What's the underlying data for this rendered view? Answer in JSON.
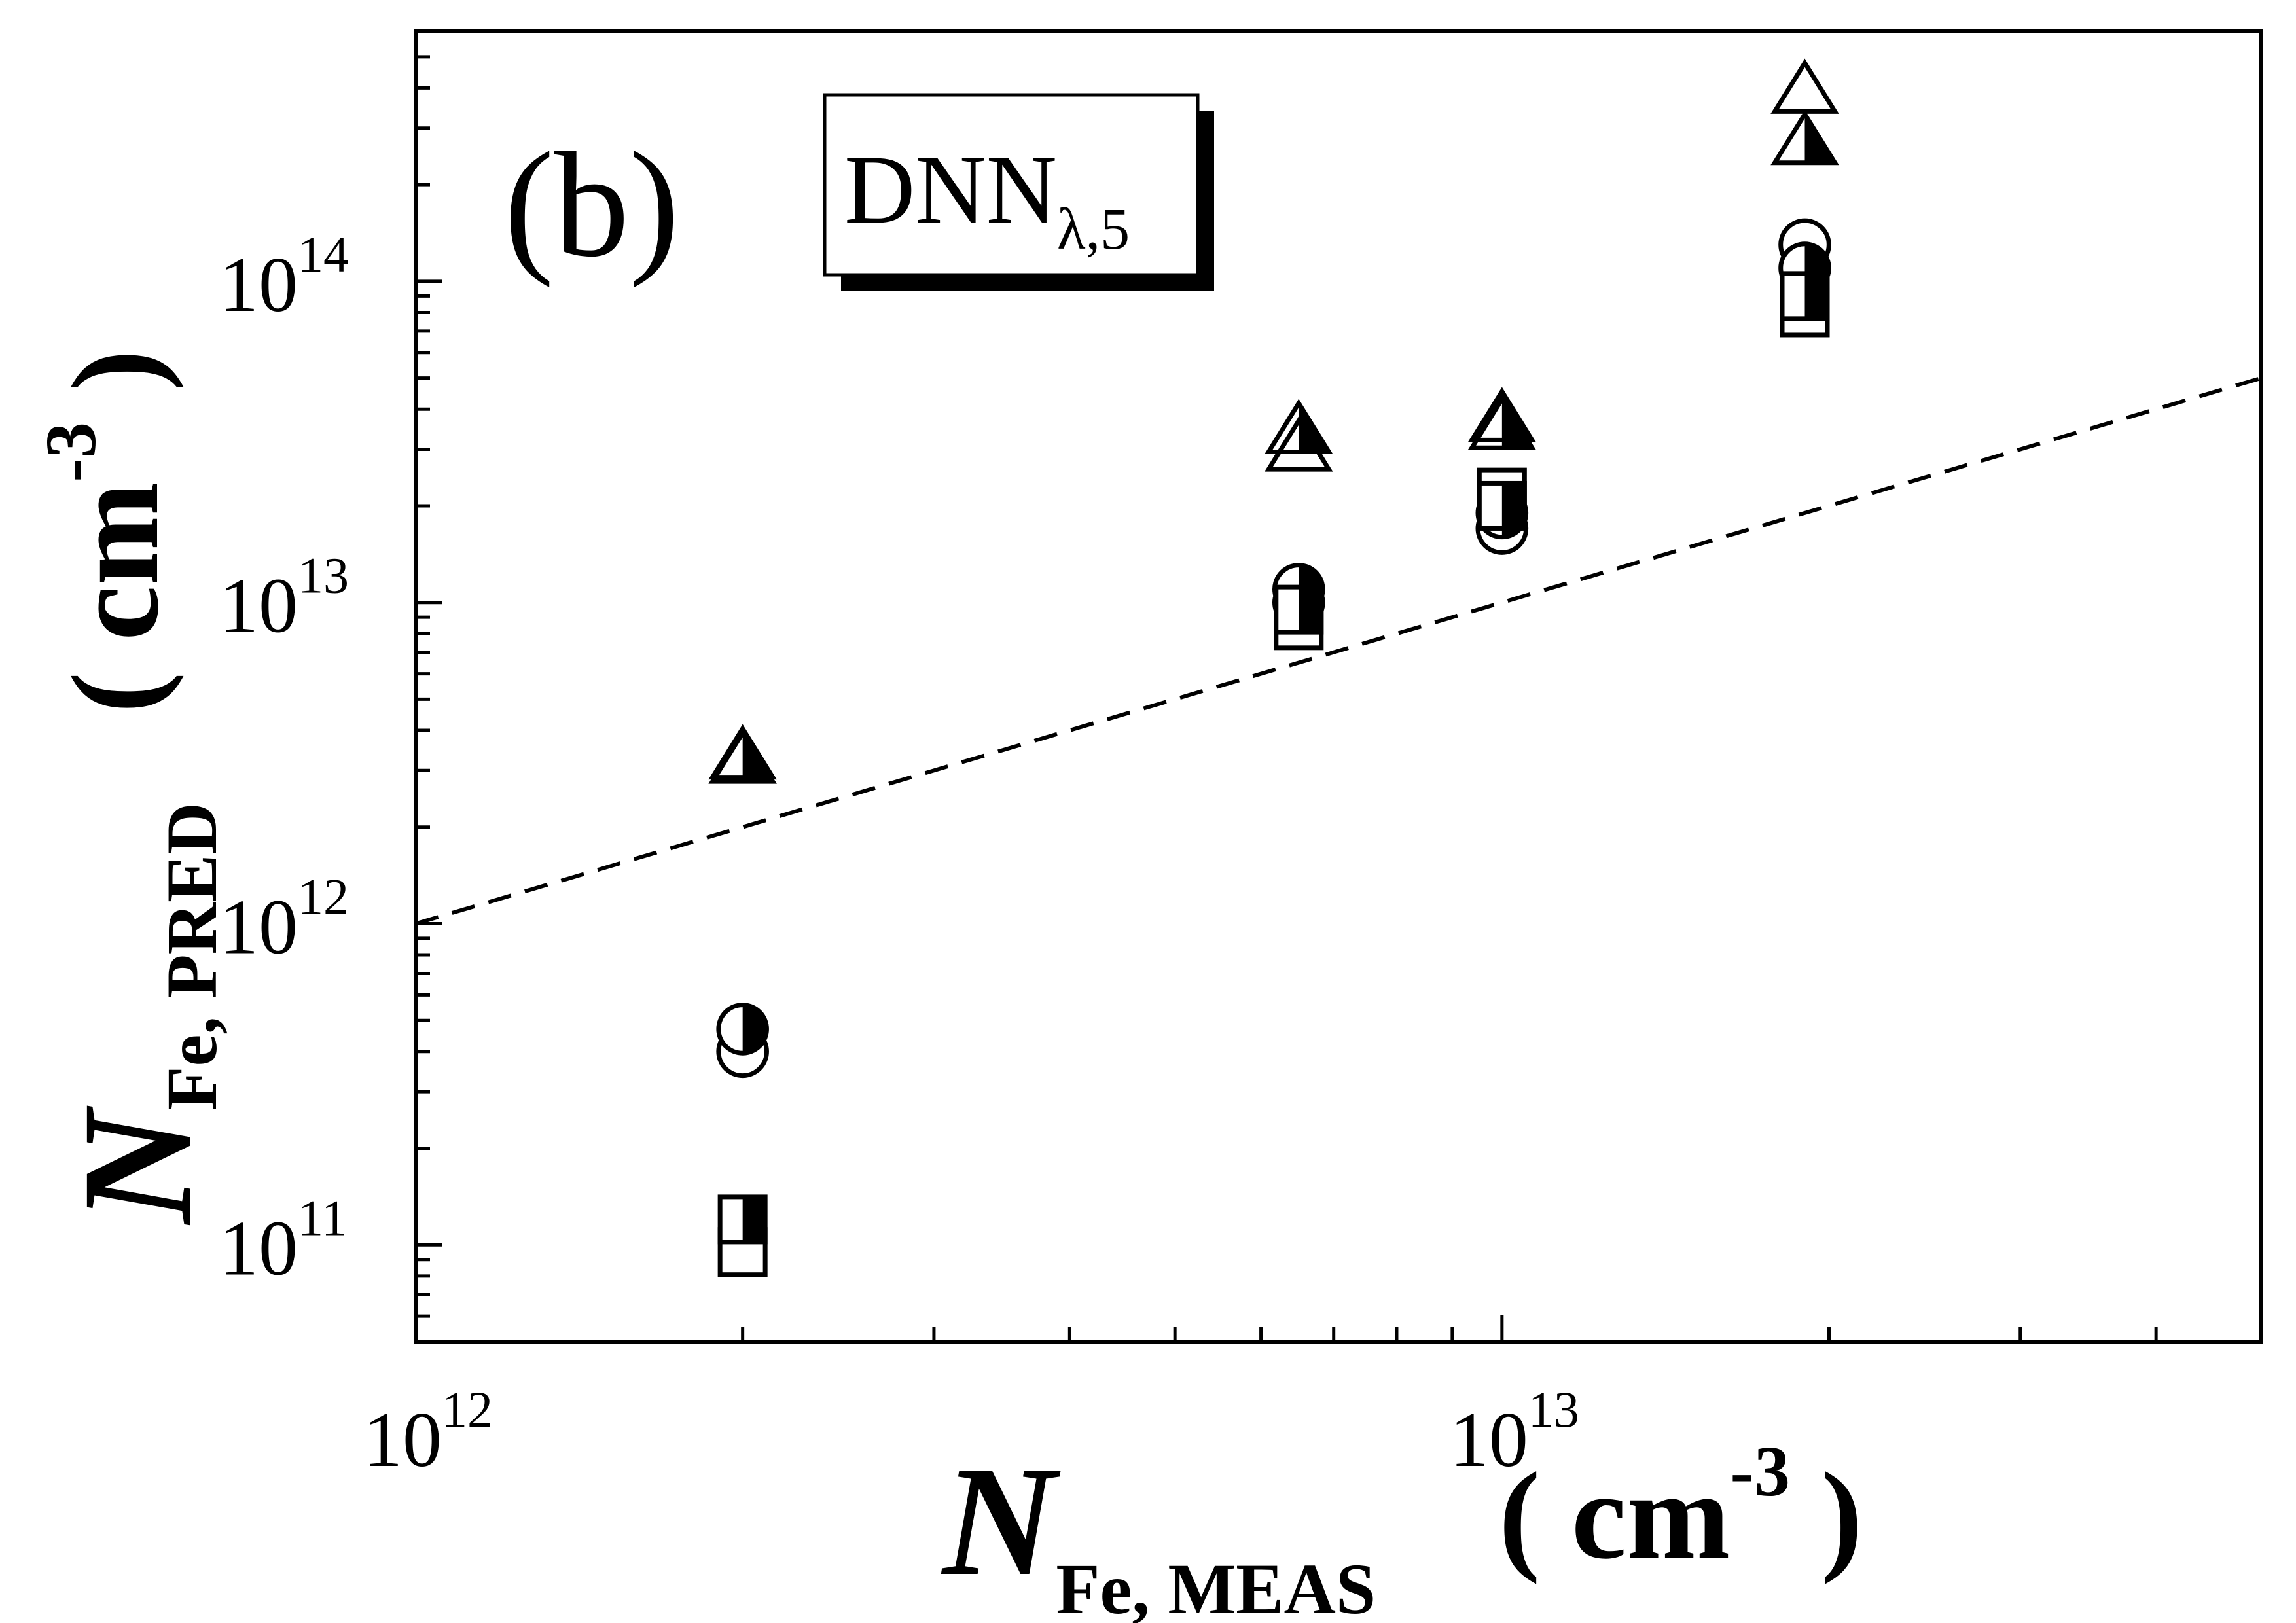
{
  "chart_data": {
    "type": "scatter",
    "panel_label": "(b)",
    "legend_box": {
      "main": "DNN",
      "subscript": "λ,5"
    },
    "x_axis": {
      "scale": "log",
      "range": [
        1000000000000.0,
        50000000000000.0
      ],
      "label_main": "N",
      "label_sub": "Fe, MEAS",
      "label_unit_open": "( cm",
      "label_unit_exp": "-3",
      "label_unit_close": " )",
      "ticks": [
        {
          "value": 1000000000000.0,
          "base": "10",
          "exp": "12"
        },
        {
          "value": 10000000000000.0,
          "base": "10",
          "exp": "13"
        }
      ]
    },
    "y_axis": {
      "scale": "log",
      "range": [
        50000000000.0,
        600000000000000.0
      ],
      "label_main": "N",
      "label_sub": "Fe, PRED",
      "label_unit_open": "( cm",
      "label_unit_exp": "-3",
      "label_unit_close": " )",
      "ticks": [
        {
          "value": 100000000000.0,
          "base": "10",
          "exp": "11"
        },
        {
          "value": 1000000000000.0,
          "base": "10",
          "exp": "12"
        },
        {
          "value": 10000000000000.0,
          "base": "10",
          "exp": "13"
        },
        {
          "value": 100000000000000.0,
          "base": "10",
          "exp": "14"
        }
      ]
    },
    "reference_line": {
      "style": "dashed",
      "x": [
        1000000000000.0,
        50000000000000.0
      ],
      "y": [
        1000000000000.0,
        50000000000000.0
      ]
    },
    "series": [
      {
        "marker": "triangle-open",
        "points": [
          [
            2000000000000.0,
            3300000000000.0
          ],
          [
            6500000000000.0,
            30000000000000.0
          ],
          [
            10000000000000.0,
            37000000000000.0
          ],
          [
            19000000000000.0,
            390000000000000.0
          ]
        ]
      },
      {
        "marker": "triangle-half",
        "points": [
          [
            2000000000000.0,
            3200000000000.0
          ],
          [
            6500000000000.0,
            34000000000000.0
          ],
          [
            10000000000000.0,
            35000000000000.0
          ],
          [
            19000000000000.0,
            270000000000000.0
          ]
        ]
      },
      {
        "marker": "circle-open",
        "points": [
          [
            2000000000000.0,
            400000000000.0
          ],
          [
            6500000000000.0,
            10000000000000.0
          ],
          [
            10000000000000.0,
            17000000000000.0
          ],
          [
            19000000000000.0,
            130000000000000.0
          ]
        ]
      },
      {
        "marker": "circle-half",
        "points": [
          [
            2000000000000.0,
            470000000000.0
          ],
          [
            6500000000000.0,
            11000000000000.0
          ],
          [
            10000000000000.0,
            19000000000000.0
          ],
          [
            19000000000000.0,
            110000000000000.0
          ]
        ]
      },
      {
        "marker": "square-open",
        "points": [
          [
            2000000000000.0,
            95000000000.0
          ],
          [
            6500000000000.0,
            8500000000000.0
          ],
          [
            10000000000000.0,
            22000000000000.0
          ],
          [
            19000000000000.0,
            80000000000000.0
          ]
        ]
      },
      {
        "marker": "square-half",
        "points": [
          [
            2000000000000.0,
            120000000000.0
          ],
          [
            6500000000000.0,
            9500000000000.0
          ],
          [
            10000000000000.0,
            20000000000000.0
          ],
          [
            19000000000000.0,
            90000000000000.0
          ]
        ]
      }
    ]
  }
}
